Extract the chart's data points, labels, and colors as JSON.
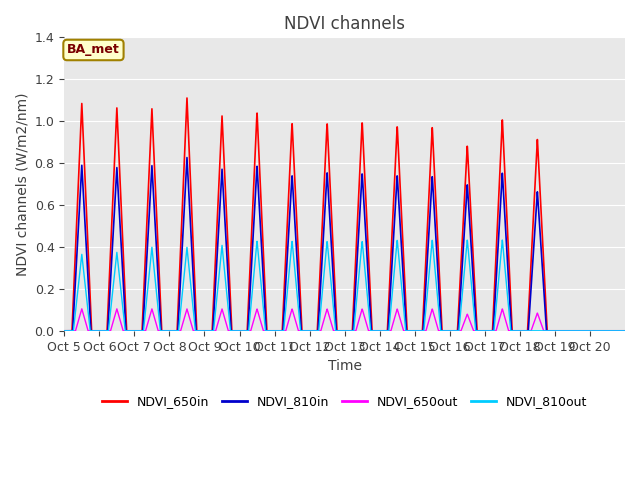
{
  "title": "NDVI channels",
  "xlabel": "Time",
  "ylabel": "NDVI channels (W/m2/nm)",
  "ylim": [
    0,
    1.4
  ],
  "annotation_text": "BA_met",
  "bg_color": "#e8e8e8",
  "series": {
    "NDVI_650in": {
      "color": "#ff0000",
      "lw": 1.2
    },
    "NDVI_810in": {
      "color": "#0000cc",
      "lw": 1.2
    },
    "NDVI_650out": {
      "color": "#ff00ff",
      "lw": 1.0
    },
    "NDVI_810out": {
      "color": "#00ccff",
      "lw": 1.0
    }
  },
  "xtick_labels": [
    "Oct 5",
    "Oct 6",
    "Oct 7",
    "Oct 8",
    "Oct 9",
    "Oct 10",
    "Oct 11",
    "Oct 12",
    "Oct 13",
    "Oct 14",
    "Oct 15",
    "Oct 16",
    "Oct 17",
    "Oct 18",
    "Oct 19",
    "Oct 20"
  ],
  "n_days": 16,
  "peak_650in": [
    1.085,
    1.065,
    1.062,
    1.115,
    1.03,
    1.045,
    0.995,
    0.995,
    1.0,
    0.98,
    0.975,
    0.885,
    1.01,
    0.915,
    0.0,
    0.0
  ],
  "peak_810in": [
    0.79,
    0.78,
    0.79,
    0.83,
    0.775,
    0.79,
    0.745,
    0.76,
    0.755,
    0.745,
    0.74,
    0.7,
    0.755,
    0.665,
    0.0,
    0.0
  ],
  "peak_650out": [
    0.105,
    0.105,
    0.105,
    0.105,
    0.105,
    0.105,
    0.105,
    0.105,
    0.105,
    0.105,
    0.105,
    0.08,
    0.105,
    0.085,
    0.0,
    0.0
  ],
  "peak_810out": [
    0.365,
    0.375,
    0.4,
    0.4,
    0.41,
    0.43,
    0.43,
    0.43,
    0.43,
    0.435,
    0.435,
    0.435,
    0.435,
    0.0,
    0.0,
    0.0
  ]
}
